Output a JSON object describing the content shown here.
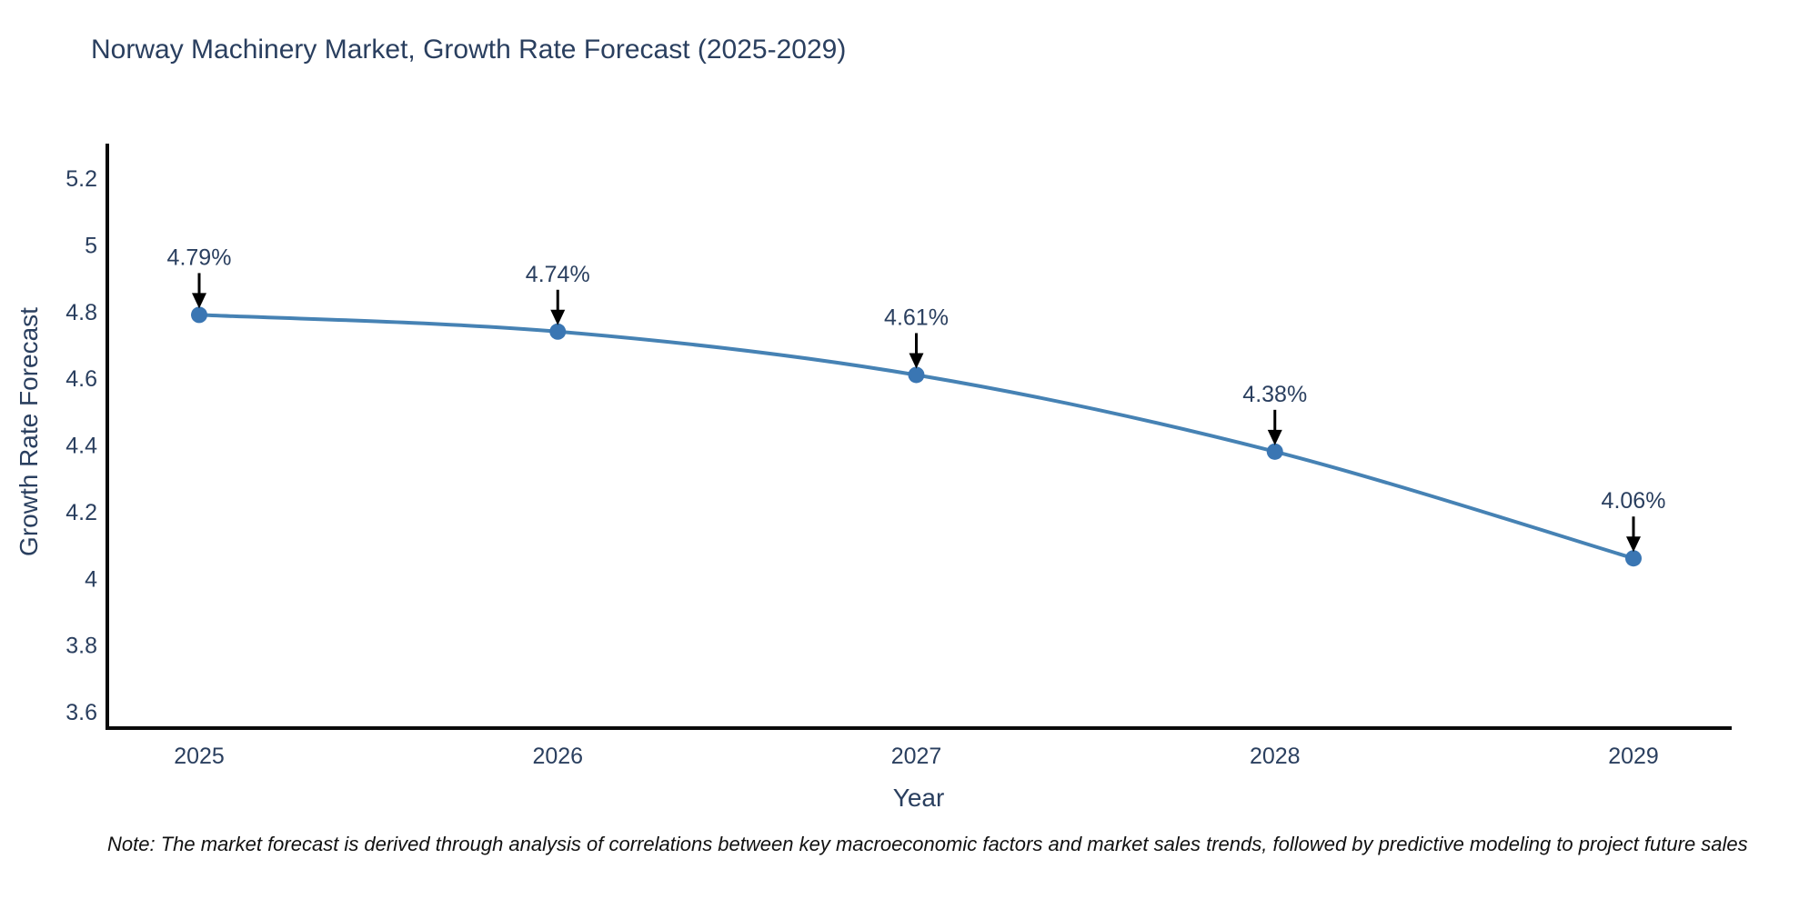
{
  "title": "Norway Machinery Market, Growth Rate Forecast (2025-2029)",
  "note": "Note: The market forecast is derived through analysis of correlations between key macroeconomic factors and market sales trends, followed by predictive modeling to project future sales",
  "colors": {
    "title_text": "#2a3f5f",
    "axis_text": "#2a3f5f",
    "axis_line": "#0a0a0a",
    "line": "#4682b4",
    "marker": "#3a76b3",
    "annotation_text": "#2a3f5f",
    "annotation_arrow": "#000000",
    "background": "#ffffff"
  },
  "chart_data": {
    "type": "line",
    "title": "Norway Machinery Market, Growth Rate Forecast (2025-2029)",
    "xlabel": "Year",
    "ylabel": "Growth Rate Forecast",
    "x": [
      "2025",
      "2026",
      "2027",
      "2028",
      "2029"
    ],
    "series": [
      {
        "name": "Growth Rate Forecast",
        "values": [
          4.79,
          4.74,
          4.61,
          4.38,
          4.06
        ]
      }
    ],
    "point_labels": [
      "4.79%",
      "4.74%",
      "4.61%",
      "4.38%",
      "4.06%"
    ],
    "yticks": [
      3.6,
      3.8,
      4,
      4.2,
      4.4,
      4.6,
      4.8,
      5,
      5.2
    ],
    "ylim": [
      3.55,
      5.3
    ],
    "grid": false,
    "legend": "none",
    "line_shape": "spline",
    "markers": true,
    "annotations": "arrow-down-to-point"
  }
}
